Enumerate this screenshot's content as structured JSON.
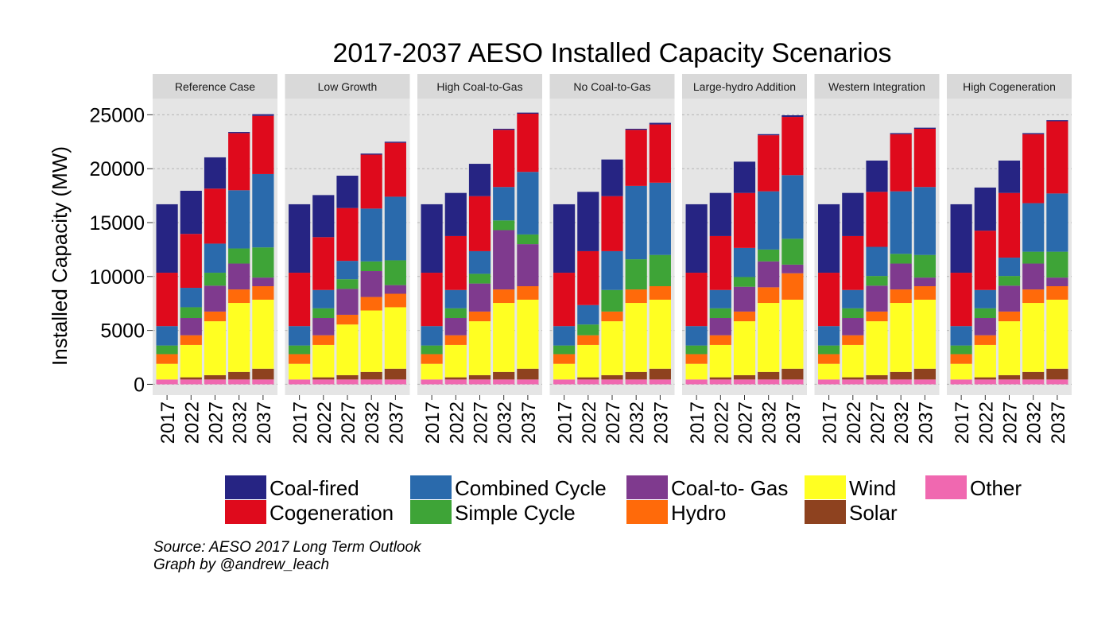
{
  "chart_data": {
    "type": "bar",
    "stacked": true,
    "title": "2017-2037 AESO Installed Capacity Scenarios",
    "ylabel": "Installed Capacity (MW)",
    "xlabel": "",
    "ylim": [
      -1000,
      26500
    ],
    "yticks": [
      0,
      5000,
      10000,
      15000,
      20000,
      25000
    ],
    "grid": true,
    "legend_position": "bottom",
    "categories": [
      "2017",
      "2022",
      "2027",
      "2032",
      "2037"
    ],
    "stack_order": [
      "Other",
      "Solar",
      "Wind",
      "Hydro",
      "Coal-to- Gas",
      "Simple Cycle",
      "Combined Cycle",
      "Cogeneration",
      "Coal-fired"
    ],
    "legend": [
      {
        "name": "Coal-fired",
        "color": "#262483"
      },
      {
        "name": "Combined Cycle",
        "color": "#2a6aac"
      },
      {
        "name": "Coal-to- Gas",
        "color": "#7f3a8e"
      },
      {
        "name": "Wind",
        "color": "#ffff22"
      },
      {
        "name": "Other",
        "color": "#f068b0"
      },
      {
        "name": "Cogeneration",
        "color": "#df0a1c"
      },
      {
        "name": "Simple Cycle",
        "color": "#3ea437"
      },
      {
        "name": "Hydro",
        "color": "#ff6a0a"
      },
      {
        "name": "Solar",
        "color": "#8e421f"
      }
    ],
    "panels": [
      {
        "scenario": "Reference Case",
        "series": {
          "Other": [
            450,
            450,
            450,
            450,
            450
          ],
          "Solar": [
            0,
            200,
            400,
            700,
            1000
          ],
          "Wind": [
            1450,
            3000,
            5000,
            6400,
            6400
          ],
          "Hydro": [
            900,
            900,
            900,
            1250,
            1250
          ],
          "Coal-to- Gas": [
            0,
            1600,
            2400,
            2400,
            800
          ],
          "Simple Cycle": [
            800,
            1000,
            1200,
            1400,
            2800
          ],
          "Combined Cycle": [
            1800,
            1800,
            2700,
            5400,
            6800
          ],
          "Cogeneration": [
            4950,
            5000,
            5100,
            5300,
            5400
          ],
          "Coal-fired": [
            6350,
            4000,
            2900,
            100,
            150
          ]
        }
      },
      {
        "scenario": "Low Growth",
        "series": {
          "Other": [
            450,
            450,
            450,
            450,
            450
          ],
          "Solar": [
            0,
            200,
            400,
            700,
            1000
          ],
          "Wind": [
            1450,
            3000,
            4700,
            5700,
            5700
          ],
          "Hydro": [
            900,
            900,
            900,
            1250,
            1250
          ],
          "Coal-to- Gas": [
            0,
            1600,
            2400,
            2400,
            800
          ],
          "Simple Cycle": [
            800,
            900,
            900,
            900,
            2300
          ],
          "Combined Cycle": [
            1800,
            1700,
            1700,
            4900,
            5900
          ],
          "Cogeneration": [
            4950,
            4900,
            4900,
            5000,
            5000
          ],
          "Coal-fired": [
            6350,
            3900,
            3000,
            100,
            100
          ]
        }
      },
      {
        "scenario": "High Coal-to-Gas",
        "series": {
          "Other": [
            450,
            450,
            450,
            450,
            450
          ],
          "Solar": [
            0,
            200,
            400,
            700,
            1000
          ],
          "Wind": [
            1450,
            3000,
            5000,
            6400,
            6400
          ],
          "Hydro": [
            900,
            900,
            900,
            1250,
            1250
          ],
          "Coal-to- Gas": [
            0,
            1600,
            2600,
            5500,
            3900
          ],
          "Simple Cycle": [
            800,
            900,
            900,
            900,
            900
          ],
          "Combined Cycle": [
            1800,
            1700,
            2100,
            3100,
            5800
          ],
          "Cogeneration": [
            4950,
            5000,
            5100,
            5300,
            5400
          ],
          "Coal-fired": [
            6350,
            4000,
            3000,
            100,
            100
          ]
        }
      },
      {
        "scenario": "No Coal-to-Gas",
        "series": {
          "Other": [
            450,
            450,
            450,
            450,
            450
          ],
          "Solar": [
            0,
            200,
            400,
            700,
            1000
          ],
          "Wind": [
            1450,
            3000,
            5000,
            6400,
            6400
          ],
          "Hydro": [
            900,
            900,
            900,
            1250,
            1250
          ],
          "Coal-to- Gas": [
            0,
            0,
            0,
            0,
            0
          ],
          "Simple Cycle": [
            800,
            1000,
            2000,
            2800,
            2900
          ],
          "Combined Cycle": [
            1800,
            1800,
            3600,
            6800,
            6700
          ],
          "Cogeneration": [
            4950,
            5000,
            5100,
            5200,
            5400
          ],
          "Coal-fired": [
            6350,
            5500,
            3400,
            100,
            150
          ]
        }
      },
      {
        "scenario": "Large-hydro Addition",
        "series": {
          "Other": [
            450,
            450,
            450,
            450,
            450
          ],
          "Solar": [
            0,
            200,
            400,
            700,
            1000
          ],
          "Wind": [
            1450,
            3000,
            5000,
            6400,
            6400
          ],
          "Hydro": [
            900,
            900,
            900,
            1450,
            2450
          ],
          "Coal-to- Gas": [
            0,
            1600,
            2300,
            2400,
            800
          ],
          "Simple Cycle": [
            800,
            900,
            900,
            1100,
            2400
          ],
          "Combined Cycle": [
            1800,
            1700,
            2700,
            5400,
            5900
          ],
          "Cogeneration": [
            4950,
            5000,
            5100,
            5200,
            5400
          ],
          "Coal-fired": [
            6350,
            4000,
            2900,
            100,
            150
          ]
        }
      },
      {
        "scenario": "Western Integration",
        "series": {
          "Other": [
            450,
            450,
            450,
            450,
            450
          ],
          "Solar": [
            0,
            200,
            400,
            700,
            1000
          ],
          "Wind": [
            1450,
            3000,
            5000,
            6400,
            6400
          ],
          "Hydro": [
            900,
            900,
            900,
            1250,
            1250
          ],
          "Coal-to- Gas": [
            0,
            1600,
            2400,
            2400,
            800
          ],
          "Simple Cycle": [
            800,
            900,
            900,
            900,
            2100
          ],
          "Combined Cycle": [
            1800,
            1700,
            2700,
            5800,
            6300
          ],
          "Cogeneration": [
            4950,
            5000,
            5100,
            5300,
            5400
          ],
          "Coal-fired": [
            6350,
            4000,
            2900,
            100,
            100
          ]
        }
      },
      {
        "scenario": "High Cogeneration",
        "series": {
          "Other": [
            450,
            450,
            450,
            450,
            450
          ],
          "Solar": [
            0,
            200,
            400,
            700,
            1000
          ],
          "Wind": [
            1450,
            3000,
            5000,
            6400,
            6400
          ],
          "Hydro": [
            900,
            900,
            900,
            1250,
            1250
          ],
          "Coal-to- Gas": [
            0,
            1600,
            2400,
            2400,
            800
          ],
          "Simple Cycle": [
            800,
            900,
            900,
            1100,
            2400
          ],
          "Combined Cycle": [
            1800,
            1700,
            1700,
            4500,
            5400
          ],
          "Cogeneration": [
            4950,
            5500,
            6000,
            6400,
            6700
          ],
          "Coal-fired": [
            6350,
            4000,
            3000,
            100,
            100
          ]
        }
      }
    ]
  },
  "footer": {
    "source": "Source: AESO 2017 Long Term Outlook",
    "credit": "Graph by @andrew_leach"
  }
}
